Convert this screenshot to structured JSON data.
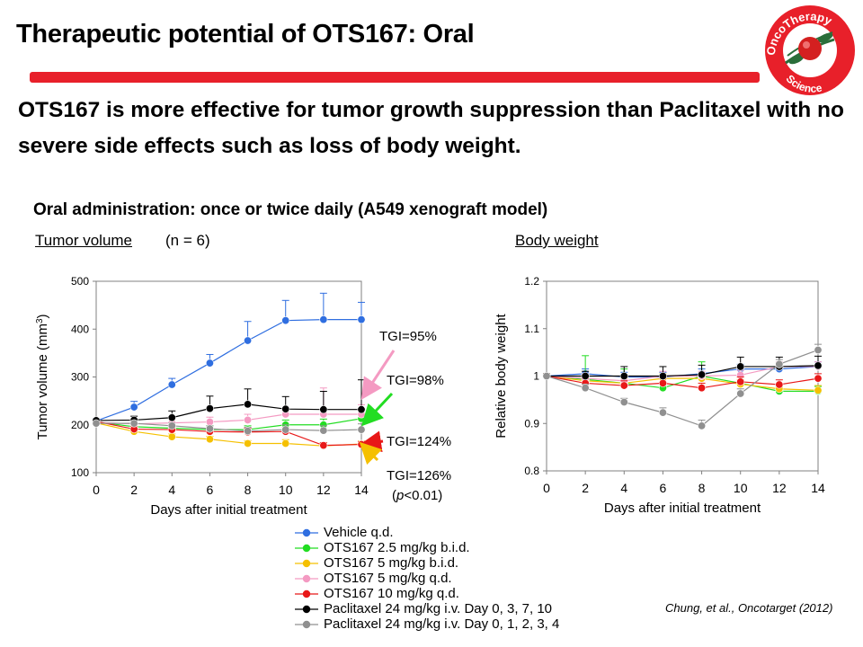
{
  "title": "Therapeutic potential of OTS167: Oral",
  "logo": {
    "text_top": "OncoTherapy",
    "text_bottom": "Science",
    "color": "#e8202a"
  },
  "headline": "OTS167 is more effective for tumor growth suppression than Paclitaxel with no severe side effects such as loss of body weight.",
  "subheading": "Oral administration: once or twice daily (A549 xenograft model)",
  "tumor_panel": {
    "label": "Tumor volume",
    "n_label": "(n = 6)"
  },
  "weight_panel": {
    "label": "Body weight"
  },
  "citation": "Chung, et al., Oncotarget (2012)",
  "chart_data": [
    {
      "type": "line",
      "ylabel": "Tumor volume (mm3)",
      "xlabel": "Days after initial treatment",
      "xlim": [
        0,
        14
      ],
      "ylim": [
        100,
        500
      ],
      "xticks": [
        0,
        2,
        4,
        6,
        8,
        10,
        12,
        14
      ],
      "yticks": [
        100,
        200,
        300,
        400,
        500
      ],
      "x": [
        0,
        2,
        4,
        6,
        8,
        10,
        12,
        14
      ],
      "series": [
        {
          "name": "Vehicle q.d.",
          "color": "#2f6ee0",
          "values": [
            208,
            237,
            284,
            329,
            376,
            418,
            420,
            420
          ],
          "error": [
            5,
            12,
            13,
            18,
            40,
            42,
            55,
            36
          ]
        },
        {
          "name": "OTS167 2.5 mg/kg b.i.d.",
          "color": "#22dd22",
          "values": [
            206,
            196,
            193,
            190,
            190,
            200,
            200,
            213
          ],
          "error": [
            4,
            6,
            6,
            8,
            8,
            10,
            12,
            8
          ]
        },
        {
          "name": "OTS167 5 mg/kg b.i.d.",
          "color": "#f5c000",
          "values": [
            204,
            186,
            175,
            170,
            161,
            161,
            156,
            160
          ],
          "error": [
            4,
            6,
            6,
            6,
            6,
            8,
            6,
            6
          ]
        },
        {
          "name": "OTS167 5 mg/kg q.d.",
          "color": "#f49ac2",
          "values": [
            205,
            202,
            204,
            206,
            210,
            222,
            222,
            222
          ],
          "error": [
            4,
            8,
            8,
            10,
            12,
            14,
            55,
            20
          ]
        },
        {
          "name": "OTS167 10 mg/kg q.d.",
          "color": "#e81818",
          "values": [
            207,
            191,
            190,
            186,
            185,
            186,
            157,
            159
          ],
          "error": [
            4,
            6,
            6,
            6,
            8,
            8,
            6,
            6
          ]
        },
        {
          "name": "Paclitaxel 24 mg/kg i.v. Day 0, 3, 7, 10",
          "color": "#000000",
          "values": [
            209,
            210,
            215,
            234,
            243,
            233,
            232,
            232
          ],
          "error": [
            4,
            8,
            14,
            26,
            32,
            26,
            38,
            62
          ]
        },
        {
          "name": "Paclitaxel 24 mg/kg i.v. Day 0, 1, 2, 3, 4",
          "color": "#909090",
          "values": [
            203,
            203,
            198,
            192,
            187,
            190,
            188,
            190
          ],
          "error": [
            4,
            6,
            6,
            6,
            8,
            10,
            10,
            12
          ]
        }
      ],
      "annotations": [
        {
          "text": "TGI=95%",
          "color": "#f49ac2"
        },
        {
          "text": "TGI=98%",
          "color": "#22dd22"
        },
        {
          "text": "TGI=124%",
          "color": "#e81818"
        },
        {
          "text": "TGI=126%",
          "color": "#f5c000",
          "subtext": "(p<0.01)"
        }
      ]
    },
    {
      "type": "line",
      "ylabel": "Relative body weight",
      "xlabel": "Days after initial treatment",
      "xlim": [
        0,
        14
      ],
      "ylim": [
        0.8,
        1.2
      ],
      "xticks": [
        0,
        2,
        4,
        6,
        8,
        10,
        12,
        14
      ],
      "yticks": [
        "0.8",
        "0.9",
        "1",
        "1.1",
        "1.2"
      ],
      "x": [
        0,
        2,
        4,
        6,
        8,
        10,
        12,
        14
      ],
      "series": [
        {
          "name": "Vehicle q.d.",
          "color": "#2f6ee0",
          "values": [
            1.0,
            1.005,
            0.998,
            0.998,
            1.005,
            1.015,
            1.015,
            1.02
          ],
          "error": [
            0.005,
            0.01,
            0.01,
            0.01,
            0.01,
            0.01,
            0.01,
            0.01
          ]
        },
        {
          "name": "OTS167 2.5 mg/kg b.i.d.",
          "color": "#22dd22",
          "values": [
            1.0,
            0.993,
            0.985,
            0.975,
            1.0,
            0.985,
            0.968,
            0.968
          ],
          "error": [
            0.005,
            0.05,
            0.03,
            0.02,
            0.03,
            0.015,
            0.01,
            0.01
          ]
        },
        {
          "name": "OTS167 5 mg/kg b.i.d.",
          "color": "#f5c000",
          "values": [
            1.0,
            0.99,
            0.985,
            0.995,
            0.995,
            0.983,
            0.973,
            0.97
          ],
          "error": [
            0.005,
            0.01,
            0.01,
            0.01,
            0.01,
            0.01,
            0.01,
            0.01
          ]
        },
        {
          "name": "OTS167 5 mg/kg q.d.",
          "color": "#f49ac2",
          "values": [
            1.0,
            0.995,
            0.99,
            1.0,
            1.0,
            1.002,
            1.02,
            1.02
          ],
          "error": [
            0.005,
            0.01,
            0.01,
            0.01,
            0.01,
            0.01,
            0.01,
            0.01
          ]
        },
        {
          "name": "OTS167 10 mg/kg q.d.",
          "color": "#e81818",
          "values": [
            1.0,
            0.985,
            0.98,
            0.985,
            0.975,
            0.988,
            0.982,
            0.995
          ],
          "error": [
            0.005,
            0.01,
            0.01,
            0.01,
            0.01,
            0.01,
            0.01,
            0.01
          ]
        },
        {
          "name": "Paclitaxel 24 mg/kg i.v. Day 0, 3, 7, 10",
          "color": "#000000",
          "values": [
            1.0,
            1.0,
            1.0,
            1.0,
            1.003,
            1.02,
            1.02,
            1.022
          ],
          "error": [
            0.005,
            0.01,
            0.02,
            0.02,
            0.02,
            0.02,
            0.02,
            0.02
          ]
        },
        {
          "name": "Paclitaxel 24 mg/kg i.v. Day 0, 1, 2, 3, 4",
          "color": "#909090",
          "values": [
            1.0,
            0.975,
            0.945,
            0.923,
            0.895,
            0.963,
            1.025,
            1.055
          ],
          "error": [
            0.005,
            0.008,
            0.008,
            0.01,
            0.012,
            0.01,
            0.01,
            0.012
          ]
        }
      ]
    }
  ],
  "legend": [
    {
      "label": "Vehicle  q.d.",
      "color": "#2f6ee0"
    },
    {
      "label": "OTS167  2.5 mg/kg  b.i.d.",
      "color": "#22dd22"
    },
    {
      "label": "OTS167  5 mg/kg  b.i.d.",
      "color": "#f5c000"
    },
    {
      "label": "OTS167  5 mg/kg  q.d.",
      "color": "#f49ac2"
    },
    {
      "label": "OTS167  10 mg/kg  q.d.",
      "color": "#e81818"
    },
    {
      "label": "Paclitaxel  24 mg/kg i.v. Day 0, 3, 7, 10",
      "color": "#000000"
    },
    {
      "label": "Paclitaxel  24 mg/kg i.v. Day 0, 1, 2, 3, 4",
      "color": "#909090"
    }
  ]
}
